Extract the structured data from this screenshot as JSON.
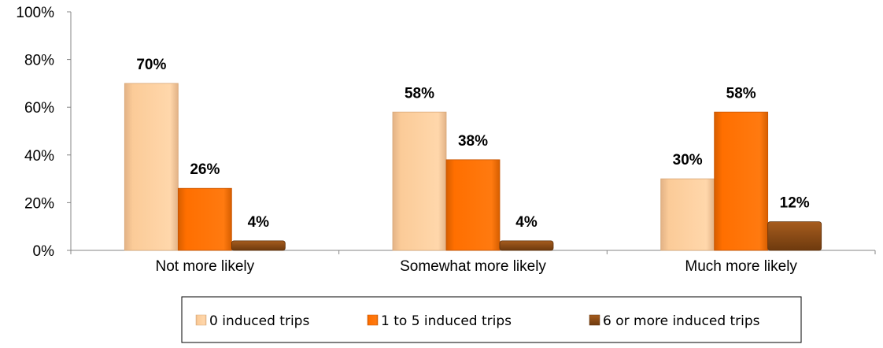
{
  "chart_data": {
    "type": "bar",
    "categories": [
      "Not more likely",
      "Somewhat more likely",
      "Much more likely"
    ],
    "series": [
      {
        "name": "0 induced trips",
        "values": [
          70,
          58,
          30
        ],
        "color": "#FBCB98",
        "edge": "#D8A777"
      },
      {
        "name": "1 to 5 induced trips",
        "values": [
          26,
          38,
          58
        ],
        "color": "#FF6F00",
        "edge": "#C75400"
      },
      {
        "name": "6 or more induced trips",
        "values": [
          4,
          4,
          12
        ],
        "color": "#8B4A14",
        "edge": "#5E300A"
      }
    ],
    "data_labels": [
      [
        "70%",
        "58%",
        "30%"
      ],
      [
        "26%",
        "38%",
        "58%"
      ],
      [
        "4%",
        "4%",
        "12%"
      ]
    ],
    "ylim": [
      0,
      100
    ],
    "yticks": [
      0,
      20,
      40,
      60,
      80,
      100
    ],
    "ytick_labels": [
      "0%",
      "20%",
      "40%",
      "60%",
      "80%",
      "100%"
    ],
    "grid": false,
    "legend_position": "bottom",
    "title": "",
    "xlabel": "",
    "ylabel": ""
  }
}
